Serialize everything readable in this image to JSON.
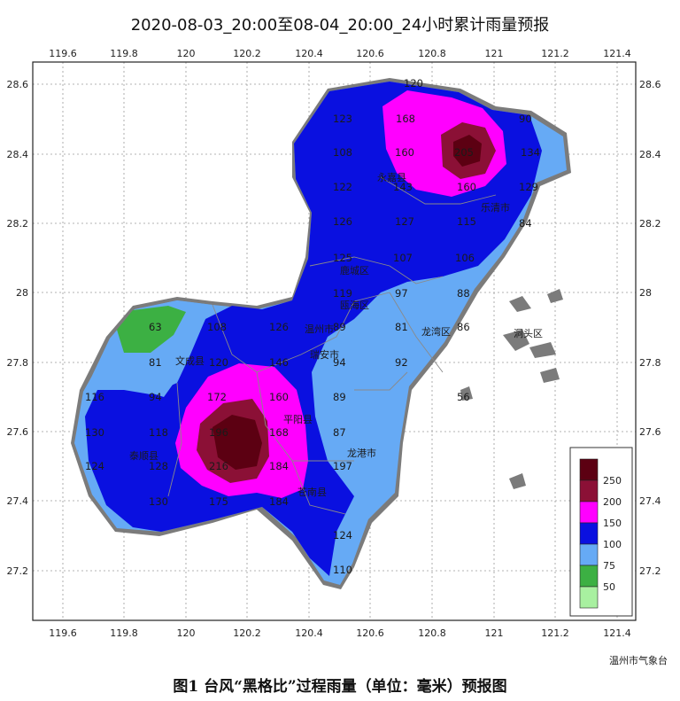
{
  "title": "2020-08-03_20:00至08-04_20:00_24小时累计雨量预报",
  "caption": "图1 台风“黑格比”过程雨量（单位：毫米）预报图",
  "source": "温州市气象台",
  "axes": {
    "lon_ticks": [
      "119.6",
      "119.8",
      "120",
      "120.2",
      "120.4",
      "120.6",
      "120.8",
      "121",
      "121.2",
      "121.4"
    ],
    "lat_ticks": [
      "28.6",
      "28.4",
      "28.2",
      "28",
      "27.8",
      "27.6",
      "27.4",
      "27.2"
    ]
  },
  "legend": {
    "levels": [
      "250",
      "200",
      "150",
      "100",
      "75",
      "50"
    ],
    "colors": [
      "#5c0012",
      "#8b1036",
      "#ff00ff",
      "#0a10e0",
      "#66aaf5",
      "#3cb043",
      "#a8f0a0"
    ]
  },
  "places": [
    "永嘉县",
    "乐清市",
    "鹿城区",
    "瓯海区",
    "温州市",
    "龙湾区",
    "洞头区",
    "文成县",
    "瑞安市",
    "平阳县",
    "泰顺县",
    "龙港市",
    "苍南县"
  ],
  "values": [
    "120",
    "123",
    "168",
    "90",
    "108",
    "160",
    "205",
    "134",
    "122",
    "143",
    "160",
    "129",
    "126",
    "127",
    "115",
    "84",
    "125",
    "107",
    "106",
    "97",
    "88",
    "119",
    "89",
    "81",
    "86",
    "63",
    "108",
    "126",
    "94",
    "81",
    "120",
    "146",
    "92",
    "94",
    "116",
    "172",
    "160",
    "89",
    "56",
    "130",
    "118",
    "196",
    "168",
    "87",
    "124",
    "128",
    "216",
    "184",
    "197",
    "130",
    "175",
    "184",
    "124",
    "110"
  ]
}
